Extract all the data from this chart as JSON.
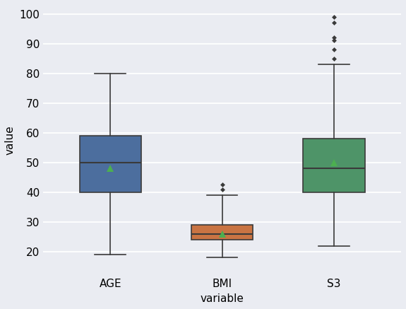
{
  "boxes": [
    {
      "label": "AGE",
      "q1": 40,
      "median": 50,
      "q3": 59,
      "whislo": 19,
      "whishi": 80,
      "mean": 48,
      "fliers": [],
      "color": "#4c6e9e",
      "palette": "#4c6e9e"
    },
    {
      "label": "BMI",
      "q1": 24,
      "median": 26,
      "q3": 29,
      "whislo": 18,
      "whishi": 39,
      "mean": 26,
      "fliers": [
        41.0,
        42.5
      ],
      "color": "#c97443",
      "palette": "#c97443"
    },
    {
      "label": "S3",
      "q1": 40,
      "median": 48,
      "q3": 58,
      "whislo": 22,
      "whishi": 83,
      "mean": 50,
      "fliers": [
        85.0,
        88.0,
        91.0,
        92.0,
        97.0,
        99.0
      ],
      "color": "#4e9468",
      "palette": "#4e9468"
    }
  ],
  "ylabel": "value",
  "xlabel": "variable",
  "ylim": [
    12,
    103
  ],
  "yticks": [
    20,
    30,
    40,
    50,
    60,
    70,
    80,
    90,
    100
  ],
  "bg_color": "#eaecf2",
  "grid_color": "#ffffff",
  "mean_color": "#4caf50",
  "flier_color": "#3a3a3a",
  "box_width": 0.55,
  "linewidth": 1.2,
  "box_edge_color": "#3a3a3a",
  "median_color": "#3a3a3a"
}
